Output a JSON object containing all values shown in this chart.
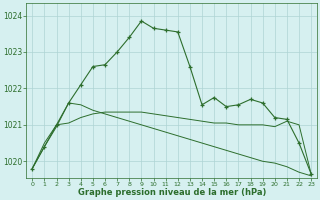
{
  "x": [
    0,
    1,
    2,
    3,
    4,
    5,
    6,
    7,
    8,
    9,
    10,
    11,
    12,
    13,
    14,
    15,
    16,
    17,
    18,
    19,
    20,
    21,
    22,
    23
  ],
  "main_line": [
    1019.8,
    1020.4,
    1021.0,
    1021.6,
    1022.1,
    1022.6,
    1022.65,
    1023.0,
    1023.4,
    1023.85,
    1023.65,
    1023.6,
    1023.55,
    1022.6,
    1021.55,
    1021.75,
    1021.5,
    1021.55,
    1021.7,
    1021.6,
    1021.2,
    1021.15,
    1020.5,
    1019.65
  ],
  "line_flat": [
    1019.8,
    1020.5,
    1021.0,
    1021.05,
    1021.2,
    1021.3,
    1021.35,
    1021.35,
    1021.35,
    1021.35,
    1021.3,
    1021.25,
    1021.2,
    1021.15,
    1021.1,
    1021.05,
    1021.05,
    1021.0,
    1021.0,
    1021.0,
    1020.95,
    1021.1,
    1021.0,
    1019.65
  ],
  "line_diag": [
    1019.8,
    1020.4,
    1020.95,
    1021.6,
    1021.55,
    1021.4,
    1021.3,
    1021.2,
    1021.1,
    1021.0,
    1020.9,
    1020.8,
    1020.7,
    1020.6,
    1020.5,
    1020.4,
    1020.3,
    1020.2,
    1020.1,
    1020.0,
    1019.95,
    1019.85,
    1019.7,
    1019.6
  ],
  "bg_color": "#d6f0f0",
  "grid_color": "#aed4d4",
  "line_color": "#2d6e2d",
  "ylabel_ticks": [
    1020,
    1021,
    1022,
    1023,
    1024
  ],
  "xlabel": "Graphe pression niveau de la mer (hPa)",
  "ylim": [
    1019.55,
    1024.35
  ],
  "xlim": [
    -0.5,
    23.5
  ]
}
